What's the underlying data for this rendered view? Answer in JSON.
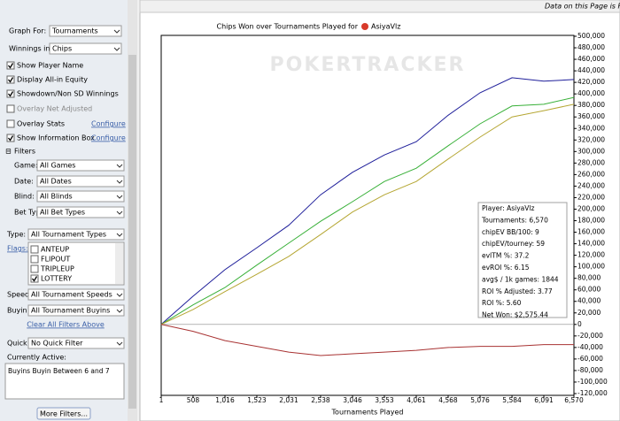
{
  "top_bar": {
    "notice": "Data on this Page is Filte"
  },
  "sidebar": {
    "graph_for_label": "Graph For:",
    "graph_for": "Tournaments",
    "winnings_label": "Winnings in:",
    "winnings": "Chips",
    "options": [
      {
        "label": "Show Player Name",
        "checked": true
      },
      {
        "label": "Display All-in Equity",
        "checked": true
      },
      {
        "label": "Showdown/Non SD Winnings",
        "checked": true
      },
      {
        "label": "Overlay Net Adjusted",
        "checked": false
      },
      {
        "label": "Overlay Stats",
        "checked": false
      },
      {
        "label": "Show Information Box",
        "checked": true
      }
    ],
    "configure": [
      "Configure",
      "Configure"
    ],
    "filters_header": "Filters",
    "filters": [
      {
        "label": "Game:",
        "value": "All Games"
      },
      {
        "label": "Date:",
        "value": "All Dates"
      },
      {
        "label": "Blind:",
        "value": "All Blinds"
      },
      {
        "label": "Bet Type:",
        "value": "All Bet Types"
      },
      {
        "label": "Type:",
        "value": "All Tournament Types"
      }
    ],
    "flags_label": "Flags:",
    "flags": [
      {
        "label": "ANTEUP",
        "checked": false
      },
      {
        "label": "FLIPOUT",
        "checked": false
      },
      {
        "label": "TRIPLEUP",
        "checked": false
      },
      {
        "label": "LOTTERY",
        "checked": true
      }
    ],
    "filters2": [
      {
        "label": "Speed:",
        "value": "All Tournament Speeds"
      },
      {
        "label": "Buyin:",
        "value": "All Tournament Buyins"
      }
    ],
    "clear": "Clear All Filters Above",
    "quick_label": "Quick:",
    "quick": "No Quick Filter",
    "active_label": "Currently Active:",
    "active_text": "Buyins Buyin Between 6 and 7",
    "more_filters": "More Filters..."
  },
  "chart_data": {
    "type": "line",
    "title": "Chips Won over Tournaments Played for",
    "player": "AsiyaVlz",
    "watermark": "POKERTRACKER",
    "x_label": "Tournaments Played",
    "x": [
      1,
      508,
      1016,
      1523,
      2031,
      2538,
      3046,
      3553,
      4061,
      4568,
      5076,
      5584,
      6091,
      6570
    ],
    "series": [
      {
        "color": "#1e1e9a",
        "values": [
          0,
          49000,
          95000,
          133000,
          172000,
          225000,
          264000,
          294000,
          317000,
          363000,
          402000,
          428000,
          422000,
          425000
        ]
      },
      {
        "color": "#38b038",
        "values": [
          0,
          34000,
          64000,
          103000,
          141000,
          179000,
          213000,
          248000,
          271000,
          310000,
          348000,
          379000,
          382000,
          394000
        ]
      },
      {
        "color": "#b5a632",
        "values": [
          0,
          26000,
          57000,
          87000,
          118000,
          156000,
          195000,
          225000,
          248000,
          287000,
          325000,
          360000,
          371000,
          382000
        ]
      },
      {
        "color": "#a83232",
        "values": [
          0,
          -12000,
          -28000,
          -38000,
          -48000,
          -54000,
          -51000,
          -48000,
          -45000,
          -40000,
          -38000,
          -38000,
          -35000,
          -35000
        ]
      }
    ],
    "xlim": [
      1,
      6570
    ],
    "xticks": [
      1,
      508,
      {
        "value": 1016,
        "label": "1,016"
      },
      {
        "value": 1523,
        "label": "1,523"
      },
      {
        "value": 2031,
        "label": "2,031"
      },
      {
        "value": 2538,
        "label": "2,538"
      },
      {
        "value": 3046,
        "label": "3,046"
      },
      {
        "value": 3553,
        "label": "3,553"
      },
      {
        "value": 4061,
        "label": "4,061"
      },
      {
        "value": 4568,
        "label": "4,568"
      },
      {
        "value": 5076,
        "label": "5,076"
      },
      {
        "value": 5584,
        "label": "5,584"
      },
      {
        "value": 6091,
        "label": "6,091"
      },
      {
        "value": 6570,
        "label": "6,570"
      }
    ],
    "ylim": [
      -120000,
      500000
    ],
    "yticks": [
      {
        "value": -120000,
        "label": "-120,000"
      },
      {
        "value": -100000,
        "label": "-100,000"
      },
      {
        "value": -80000,
        "label": "-80,000"
      },
      {
        "value": -60000,
        "label": "-60,000"
      },
      {
        "value": -40000,
        "label": "-40,000"
      },
      {
        "value": -20000,
        "label": "-20,000"
      },
      0,
      {
        "value": 20000,
        "label": "20,000"
      },
      {
        "value": 40000,
        "label": "40,000"
      },
      {
        "value": 60000,
        "label": "60,000"
      },
      {
        "value": 80000,
        "label": "80,000"
      },
      {
        "value": 100000,
        "label": "100,000"
      },
      {
        "value": 120000,
        "label": "120,000"
      },
      {
        "value": 140000,
        "label": "140,000"
      },
      {
        "value": 160000,
        "label": "160,000"
      },
      {
        "value": 180000,
        "label": "180,000"
      },
      {
        "value": 200000,
        "label": "200,000"
      },
      {
        "value": 220000,
        "label": "220,000"
      },
      {
        "value": 240000,
        "label": "240,000"
      },
      {
        "value": 260000,
        "label": "260,000"
      },
      {
        "value": 280000,
        "label": "280,000"
      },
      {
        "value": 300000,
        "label": "300,000"
      },
      {
        "value": 320000,
        "label": "320,000"
      },
      {
        "value": 340000,
        "label": "340,000"
      },
      {
        "value": 360000,
        "label": "360,000"
      },
      {
        "value": 380000,
        "label": "380,000"
      },
      {
        "value": 400000,
        "label": "400,000"
      },
      {
        "value": 420000,
        "label": "420,000"
      },
      {
        "value": 440000,
        "label": "440,000"
      },
      {
        "value": 460000,
        "label": "460,000"
      },
      {
        "value": 480000,
        "label": "480,000"
      },
      {
        "value": 500000,
        "label": "500,000"
      }
    ],
    "info_box": [
      "Player: AsiyaVlz",
      "Tournaments: 6,570",
      "chipEV BB/100: 9",
      "chipEV/tourney: 59",
      "evITM %: 37.2",
      "evROI %: 6.15",
      "avg$ / 1k games: 1844",
      "ROI % Adjusted: 3.77",
      "ROI %: 5.60",
      "Net Won: $2,575.44"
    ]
  }
}
